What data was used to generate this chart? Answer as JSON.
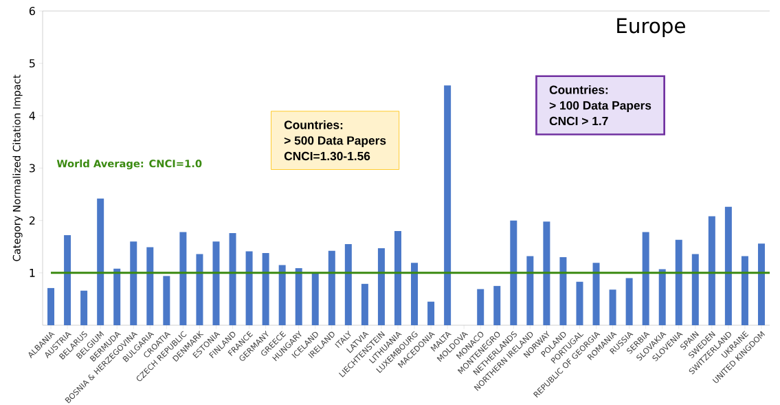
{
  "chart_data": {
    "type": "bar",
    "title": "Europe",
    "ylabel": "Category Normalized Citation Impact",
    "categories": [
      "ALBANIA",
      "AUSTRIA",
      "BELARUS",
      "BELGIUM",
      "BERMUDA",
      "BOSNIA & HERZEGOVINA",
      "BULGARIA",
      "CROATIA",
      "CZECH REPUBLIC",
      "DENMARK",
      "ESTONIA",
      "FINLAND",
      "FRANCE",
      "GERMANY",
      "GREECE",
      "HUNGARY",
      "ICELAND",
      "IRELAND",
      "ITALY",
      "LATVIA",
      "LIECHTENSTEIN",
      "LITHUANIA",
      "LUXEMBOURG",
      "MACEDONIA",
      "MALTA",
      "MOLDOVA",
      "MONACO",
      "MONTENEGRO",
      "NETHERLANDS",
      "NORTHERN IRELAND",
      "NORWAY",
      "POLAND",
      "PORTUGAL",
      "REPUBLIC OF GEORGIA",
      "ROMANIA",
      "RUSSIA",
      "SERBIA",
      "SLOVAKIA",
      "SLOVENIA",
      "SPAIN",
      "SWEDEN",
      "SWITZERLAND",
      "UKRAINE",
      "UNITED KINGDOM"
    ],
    "values": [
      0.71,
      1.72,
      0.66,
      2.42,
      1.08,
      1.6,
      1.49,
      0.94,
      1.78,
      1.36,
      1.6,
      1.76,
      1.41,
      1.38,
      1.15,
      1.09,
      1.0,
      1.42,
      1.55,
      0.79,
      1.47,
      1.8,
      1.19,
      0.45,
      4.58,
      null,
      0.69,
      0.75,
      2.0,
      1.32,
      1.98,
      1.3,
      0.83,
      1.19,
      0.68,
      0.9,
      1.78,
      1.07,
      1.63,
      1.36,
      2.08,
      2.26,
      1.32,
      1.56
    ],
    "color": "#4a78c8",
    "ylim": [
      0,
      6
    ],
    "yticks": [
      1,
      2,
      3,
      4,
      5,
      6
    ],
    "ref_lines": [
      {
        "axis": "y",
        "value": 1.0,
        "label": "World Average: CNCI=1.0",
        "color": "#3a8a10"
      }
    ],
    "annotations": [
      "Countries:",
      "> 500 Data Papers",
      "CNCI=1.30-1.56",
      "Countries:",
      "> 100 Data Papers",
      "CNCI > 1.7"
    ]
  }
}
